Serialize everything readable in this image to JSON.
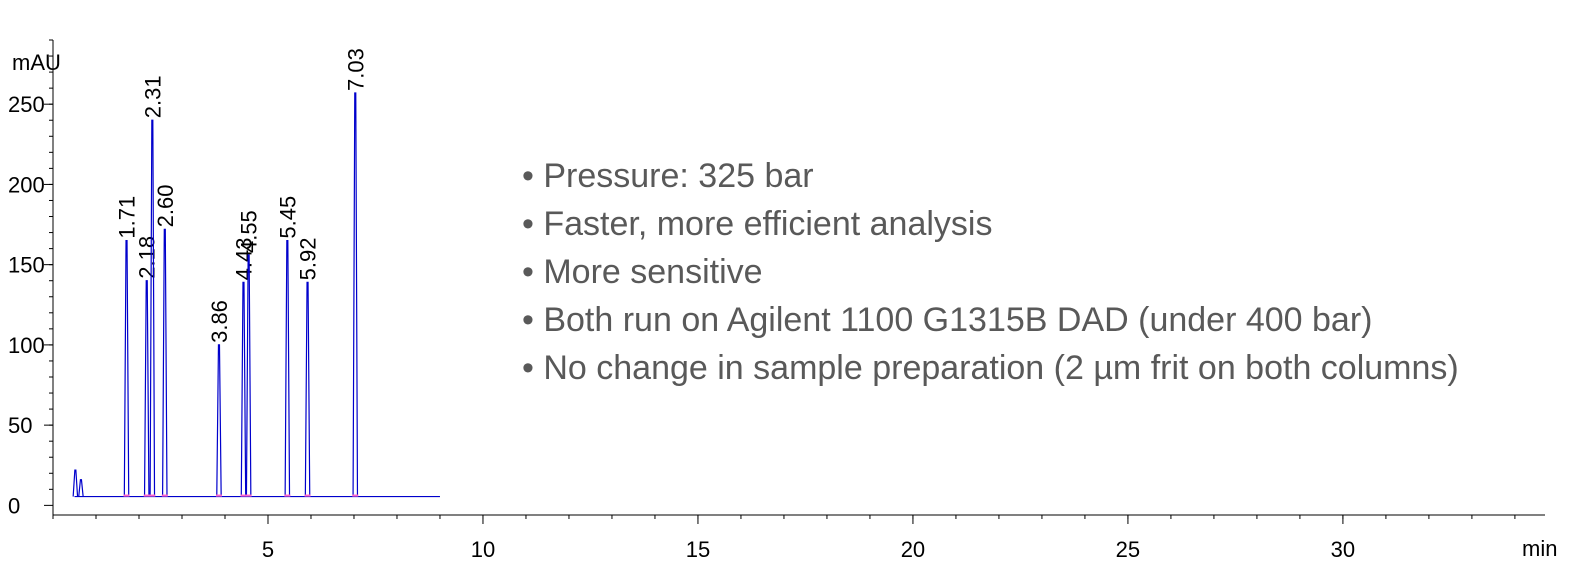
{
  "chart_data": {
    "type": "chromatogram",
    "y_unit": "mAU",
    "x_unit": "min",
    "xlim": [
      0,
      34.7
    ],
    "ylim": [
      -6,
      290
    ],
    "xticks": [
      5,
      10,
      15,
      20,
      25,
      30
    ],
    "yticks": [
      0,
      50,
      100,
      150,
      200,
      250
    ],
    "color": "#0000cc",
    "baseline": 5.5,
    "signal_range": [
      0.5,
      9
    ],
    "peaks": {
      "x": [
        0.52,
        0.65,
        1.71,
        2.18,
        2.31,
        2.6,
        3.86,
        4.43,
        4.55,
        5.45,
        5.92,
        7.03
      ],
      "values": [
        22,
        16,
        165,
        140,
        240,
        172,
        100,
        139,
        156,
        165,
        139,
        257
      ],
      "labels": [
        null,
        null,
        "1.71",
        "2.18",
        "2.31",
        "2.60",
        "3.86",
        "4.43",
        "4.55",
        "5.45",
        "5.92",
        "7.03"
      ]
    }
  },
  "notes": [
    "• Pressure: 325 bar",
    "• Faster, more efficient analysis",
    "• More sensitive",
    "• Both run on Agilent 1100 G1315B DAD (under 400 bar)",
    "• No change in sample preparation (2 µm frit on both columns)"
  ]
}
